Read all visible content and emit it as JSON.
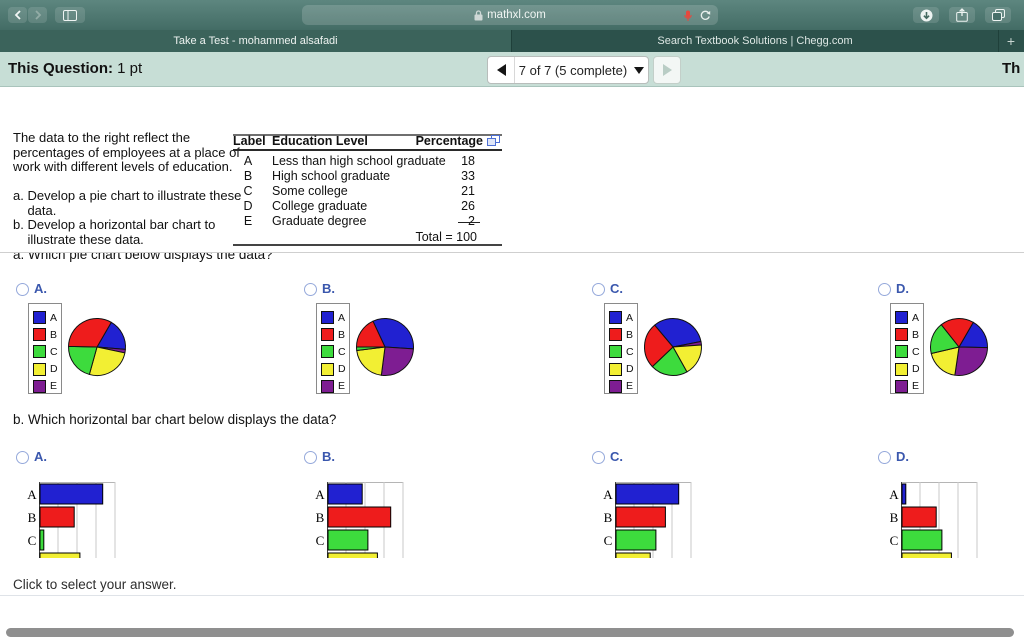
{
  "browser": {
    "url": "mathxl.com",
    "tabs": [
      {
        "label": "Take a Test - mohammed alsafadi"
      },
      {
        "label": "Search Textbook Solutions | Chegg.com"
      }
    ],
    "new_tab_label": "+",
    "icons": {
      "back": "chevron-left",
      "forward": "chevron-right",
      "sidebar": "split-panel",
      "lock": "padlock",
      "mic": "red-microphone",
      "reload": "circular-arrow",
      "download": "circle-down-arrow",
      "share": "square-up-arrow",
      "tabs": "overlapping-squares"
    }
  },
  "question_header": {
    "title_label": "This Question:",
    "title_value": "1 pt",
    "nav_text": "7 of 7 (5 complete)",
    "right_truncated_text": "Th"
  },
  "problem": {
    "intro_lines": [
      "The data to the right reflect the",
      "percentages of employees at a place of",
      "work with different levels of education."
    ],
    "item_a_lines": [
      "a. Develop a pie chart to illustrate these",
      "    data."
    ],
    "item_b_lines": [
      "b. Develop a horizontal bar chart to",
      "    illustrate these data."
    ],
    "question_a": "a. Which pie chart below displays the data?",
    "question_b": "b. Which horizontal bar chart below displays the data?",
    "footer": "Click to select your answer."
  },
  "table": {
    "headers": [
      "Label",
      "Education Level",
      "Percentage"
    ],
    "rows": [
      [
        "A",
        "Less than high school graduate",
        "18"
      ],
      [
        "B",
        "High school graduate",
        "33"
      ],
      [
        "C",
        "Some college",
        "21"
      ],
      [
        "D",
        "College graduate",
        "26"
      ],
      [
        "E",
        "Graduate degree",
        "2"
      ]
    ],
    "total": "Total = 100",
    "popout_icon": "blue-overlapping-squares"
  },
  "colors": {
    "A": "#2121d1",
    "B": "#ee1c1c",
    "C": "#3ddb3d",
    "D": "#f2ef33",
    "E": "#7e1d92"
  },
  "chart_data": [
    {
      "id": "pie-a",
      "type": "pie",
      "question": "a",
      "label": "A.",
      "legend": [
        "A",
        "B",
        "C",
        "D",
        "E"
      ],
      "start_angle": 30,
      "slices": [
        {
          "label": "A",
          "value": 18
        },
        {
          "label": "E",
          "value": 2
        },
        {
          "label": "D",
          "value": 26
        },
        {
          "label": "C",
          "value": 21
        },
        {
          "label": "B",
          "value": 33
        }
      ]
    },
    {
      "id": "pie-b",
      "type": "pie",
      "question": "a",
      "label": "B.",
      "legend": [
        "A",
        "B",
        "C",
        "D",
        "E"
      ],
      "start_angle": 335,
      "slices": [
        {
          "label": "A",
          "value": 33
        },
        {
          "label": "E",
          "value": 26
        },
        {
          "label": "D",
          "value": 21
        },
        {
          "label": "C",
          "value": 2
        },
        {
          "label": "B",
          "value": 18
        }
      ]
    },
    {
      "id": "pie-c",
      "type": "pie",
      "question": "a",
      "label": "C.",
      "legend": [
        "A",
        "B",
        "C",
        "D",
        "E"
      ],
      "start_angle": 320,
      "slices": [
        {
          "label": "A",
          "value": 33
        },
        {
          "label": "E",
          "value": 2
        },
        {
          "label": "D",
          "value": 18
        },
        {
          "label": "C",
          "value": 21
        },
        {
          "label": "B",
          "value": 26
        }
      ]
    },
    {
      "id": "pie-d",
      "type": "pie",
      "question": "a",
      "label": "D.",
      "legend": [
        "A",
        "B",
        "C",
        "D",
        "E"
      ],
      "start_angle": 30,
      "slices": [
        {
          "label": "A",
          "value": 17
        },
        {
          "label": "E",
          "value": 27
        },
        {
          "label": "D",
          "value": 19
        },
        {
          "label": "C",
          "value": 18
        },
        {
          "label": "B",
          "value": 19
        }
      ]
    },
    {
      "id": "bar-a",
      "type": "bar",
      "question": "b",
      "label": "A.",
      "categories": [
        "A",
        "B",
        "C",
        "D"
      ],
      "values": [
        33,
        18,
        2,
        21
      ],
      "xlim": [
        0,
        40
      ],
      "gridline_step": 10,
      "clipped_bottom": true,
      "partially_visible_bar": "D"
    },
    {
      "id": "bar-b",
      "type": "bar",
      "question": "b",
      "label": "B.",
      "categories": [
        "A",
        "B",
        "C",
        "D"
      ],
      "values": [
        18,
        33,
        21,
        26
      ],
      "xlim": [
        0,
        40
      ],
      "gridline_step": 10,
      "clipped_bottom": true,
      "partially_visible_bar": "D"
    },
    {
      "id": "bar-c",
      "type": "bar",
      "question": "b",
      "label": "C.",
      "categories": [
        "A",
        "B",
        "C",
        "D"
      ],
      "values": [
        33,
        26,
        21,
        18
      ],
      "xlim": [
        0,
        40
      ],
      "gridline_step": 10,
      "clipped_bottom": true,
      "partially_visible_bar": "D"
    },
    {
      "id": "bar-d",
      "type": "bar",
      "question": "b",
      "label": "D.",
      "categories": [
        "A",
        "B",
        "C",
        "D"
      ],
      "values": [
        2,
        18,
        21,
        26
      ],
      "xlim": [
        0,
        40
      ],
      "gridline_step": 10,
      "clipped_bottom": true,
      "partially_visible_bar": "D"
    }
  ]
}
